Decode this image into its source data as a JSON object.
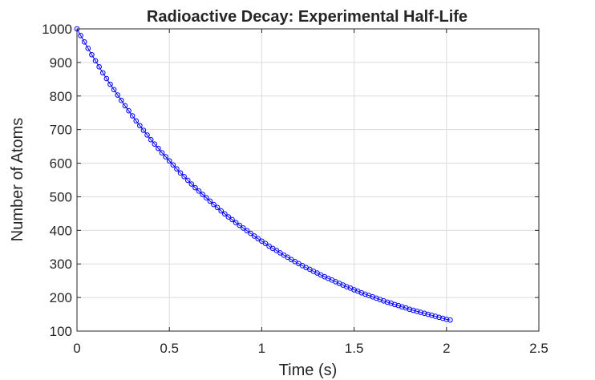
{
  "chart_data": {
    "type": "line",
    "title": "Radioactive Decay: Experimental Half-Life",
    "xlabel": "Time (s)",
    "ylabel": "Number of Atoms",
    "xlim": [
      0,
      2.5
    ],
    "ylim": [
      100,
      1000
    ],
    "xticks": [
      0,
      0.5,
      1,
      1.5,
      2,
      2.5
    ],
    "xtick_labels": [
      "0",
      "0.5",
      "1",
      "1.5",
      "2",
      "2.5"
    ],
    "yticks": [
      100,
      200,
      300,
      400,
      500,
      600,
      700,
      800,
      900,
      1000
    ],
    "ytick_labels": [
      "100",
      "200",
      "300",
      "400",
      "500",
      "600",
      "700",
      "800",
      "900",
      "1000"
    ],
    "grid": true,
    "series": [
      {
        "marker": "open-circle",
        "color": "#0000ff",
        "x": [
          0,
          0.02,
          0.04,
          0.06,
          0.08,
          0.1,
          0.12,
          0.14,
          0.16,
          0.18,
          0.2,
          0.22,
          0.24,
          0.26,
          0.28,
          0.3,
          0.32,
          0.34,
          0.36,
          0.38,
          0.4,
          0.42,
          0.44,
          0.46,
          0.48,
          0.5,
          0.52,
          0.54,
          0.56,
          0.58,
          0.6,
          0.62,
          0.64,
          0.66,
          0.68,
          0.7,
          0.72,
          0.74,
          0.76,
          0.78,
          0.8,
          0.82,
          0.84,
          0.86,
          0.88,
          0.9,
          0.92,
          0.94,
          0.96,
          0.98,
          1,
          1.02,
          1.04,
          1.06,
          1.08,
          1.1,
          1.12,
          1.14,
          1.16,
          1.18,
          1.2,
          1.22,
          1.24,
          1.26,
          1.28,
          1.3,
          1.32,
          1.34,
          1.36,
          1.38,
          1.4,
          1.42,
          1.44,
          1.46,
          1.48,
          1.5,
          1.52,
          1.54,
          1.56,
          1.58,
          1.6,
          1.62,
          1.64,
          1.66,
          1.68,
          1.7,
          1.72,
          1.74,
          1.76,
          1.78,
          1.8,
          1.82,
          1.84,
          1.86,
          1.88,
          1.9,
          1.92,
          1.94,
          1.96,
          1.98,
          2,
          2.02
        ],
        "y": [
          1000,
          980,
          961,
          942,
          923,
          905,
          887,
          869,
          852,
          835,
          819,
          803,
          787,
          771,
          756,
          741,
          726,
          712,
          698,
          684,
          670,
          657,
          644,
          631,
          619,
          607,
          595,
          583,
          571,
          560,
          549,
          538,
          527,
          517,
          507,
          497,
          487,
          477,
          468,
          458,
          449,
          440,
          432,
          423,
          415,
          407,
          399,
          391,
          383,
          375,
          368,
          361,
          353,
          346,
          340,
          333,
          326,
          320,
          313,
          307,
          301,
          295,
          289,
          284,
          278,
          273,
          267,
          262,
          257,
          252,
          247,
          242,
          237,
          232,
          228,
          223,
          219,
          214,
          210,
          206,
          202,
          198,
          194,
          190,
          186,
          183,
          179,
          176,
          172,
          169,
          165,
          162,
          159,
          156,
          153,
          150,
          147,
          144,
          141,
          138,
          135,
          133
        ]
      }
    ]
  }
}
